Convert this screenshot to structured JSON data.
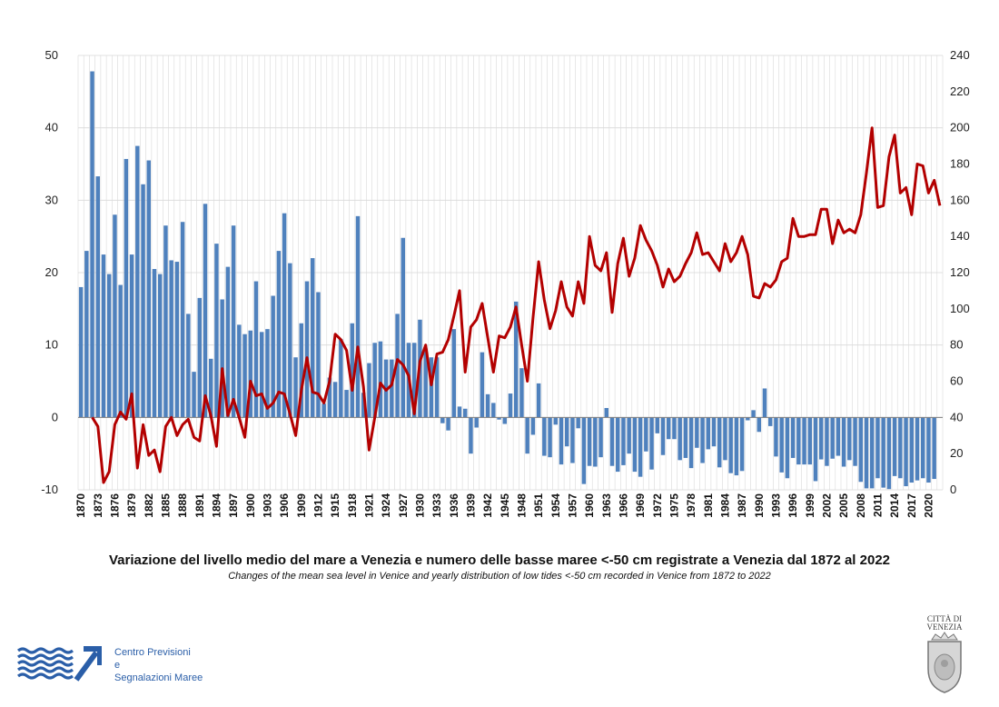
{
  "chart_data": {
    "type": "bar+line",
    "title": "Variazione del livello medio del mare a Venezia e numero delle basse maree <-50 cm registrate a Venezia dal 1872 al 2022",
    "subtitle": "Changes of the mean sea level in Venice and yearly distribution of low tides <-50 cm  recorded in Venice from 1872 to 2022",
    "x_tick_labels": [
      "1870",
      "1873",
      "1876",
      "1879",
      "1882",
      "1885",
      "1888",
      "1891",
      "1894",
      "1897",
      "1900",
      "1903",
      "1906",
      "1909",
      "1912",
      "1915",
      "1918",
      "1921",
      "1924",
      "1927",
      "1930",
      "1933",
      "1936",
      "1939",
      "1942",
      "1945",
      "1948",
      "1951",
      "1954",
      "1957",
      "1960",
      "1963",
      "1966",
      "1969",
      "1972",
      "1975",
      "1978",
      "1981",
      "1984",
      "1987",
      "1990",
      "1993",
      "1996",
      "1999",
      "2002",
      "2005",
      "2008",
      "2011",
      "2014",
      "2017",
      "2020"
    ],
    "x_range": [
      1870,
      2022
    ],
    "y_left": {
      "min": -10,
      "max": 50,
      "ticks": [
        -10,
        0,
        10,
        20,
        30,
        40,
        50
      ]
    },
    "y_right": {
      "min": 0,
      "max": 240,
      "ticks": [
        0,
        20,
        40,
        60,
        80,
        100,
        120,
        140,
        160,
        180,
        200,
        220,
        240
      ]
    },
    "series": [
      {
        "kind": "bar",
        "axis": "left",
        "color": "#4f81bd",
        "x_start": 1870,
        "values": [
          18,
          23,
          47.8,
          33.3,
          22.5,
          19.8,
          28,
          18.3,
          35.7,
          22.5,
          37.5,
          32.2,
          35.5,
          20.5,
          19.8,
          26.5,
          21.7,
          21.5,
          27,
          14.3,
          6.3,
          16.5,
          29.5,
          8.1,
          24,
          16.3,
          20.8,
          26.5,
          12.8,
          11.5,
          12,
          18.8,
          11.8,
          12.2,
          16.8,
          23,
          28.2,
          21.3,
          8.3,
          13,
          18.8,
          22,
          17.3,
          1.9,
          5.5,
          4.9,
          10.8,
          3.8,
          13,
          27.8,
          3.4,
          7.5,
          10.3,
          10.5,
          8,
          8,
          14.3,
          24.8,
          10.3,
          10.3,
          13.5,
          9.5,
          8.3,
          8.3,
          -0.8,
          -1.8,
          12.2,
          1.5,
          1.2,
          -5,
          -1.4,
          9,
          3.2,
          2,
          -0.3,
          -0.9,
          3.3,
          16,
          6.8,
          -5,
          -2.4,
          4.7,
          -5.3,
          -5.5,
          -1,
          -6.5,
          -4,
          -6.3,
          -1.5,
          -9.2,
          -6.7,
          -6.8,
          -5.5,
          1.3,
          -6.7,
          -7.5,
          -6.6,
          -5,
          -7.5,
          -8.2,
          -4.7,
          -7.2,
          -2.2,
          -5.2,
          -3,
          -3,
          -5.9,
          -5.6,
          -7,
          -4.2,
          -6.3,
          -4.4,
          -4,
          -6.9,
          -5.9,
          -7.7,
          -8,
          -7.4,
          -0.4,
          1,
          -2,
          4,
          -1.2,
          -5.4,
          -7.6,
          -8.4,
          -5.6,
          -6.5,
          -6.5,
          -6.5,
          -8.8,
          -5.8,
          -6.7,
          -5.7,
          -5.3,
          -6.8,
          -5.9,
          -6.7,
          -8.9,
          -9.8,
          -9.8,
          -8.4,
          -9.7,
          -9.9,
          -8.1,
          -8.4,
          -9.5,
          -9,
          -8.7,
          -8.4,
          -9,
          -8.5
        ]
      },
      {
        "kind": "line",
        "axis": "right",
        "color": "#b30000",
        "x_start": 1872,
        "values": [
          40,
          35,
          4,
          10,
          36,
          43,
          39,
          53,
          12,
          36,
          19,
          22,
          10,
          35,
          40,
          30,
          36,
          39,
          29,
          27,
          52,
          41,
          24,
          67,
          41,
          50,
          40,
          29,
          60,
          52,
          53,
          45,
          48,
          54,
          53,
          42,
          30,
          55,
          73,
          54,
          53,
          48,
          60,
          86,
          83,
          77,
          55,
          79,
          57,
          22,
          40,
          59,
          55,
          58,
          72,
          69,
          63,
          42,
          71,
          80,
          58,
          75,
          76,
          83,
          96,
          110,
          65,
          90,
          94,
          103,
          84,
          65,
          85,
          84,
          90,
          101,
          80,
          60,
          95,
          126,
          105,
          89,
          99,
          115,
          101,
          96,
          115,
          103,
          140,
          124,
          121,
          131,
          98,
          125,
          139,
          118,
          128,
          146,
          138,
          132,
          124,
          112,
          122,
          115,
          118,
          125,
          131,
          142,
          130,
          131,
          126,
          121,
          136,
          126,
          131,
          140,
          130,
          107,
          106,
          114,
          112,
          116,
          126,
          128,
          150,
          140,
          140,
          141,
          141,
          155,
          155,
          136,
          149,
          142,
          144,
          142,
          152,
          175,
          200,
          156,
          157,
          184,
          196,
          164,
          167,
          152,
          180,
          179,
          164,
          171,
          157
        ]
      }
    ]
  },
  "footer": {
    "logo_line1": "Centro Previsioni",
    "logo_line2": "e",
    "logo_line3": "Segnalazioni Maree",
    "seal_line1": "CITTÀ DI",
    "seal_line2": "VENEZIA"
  }
}
